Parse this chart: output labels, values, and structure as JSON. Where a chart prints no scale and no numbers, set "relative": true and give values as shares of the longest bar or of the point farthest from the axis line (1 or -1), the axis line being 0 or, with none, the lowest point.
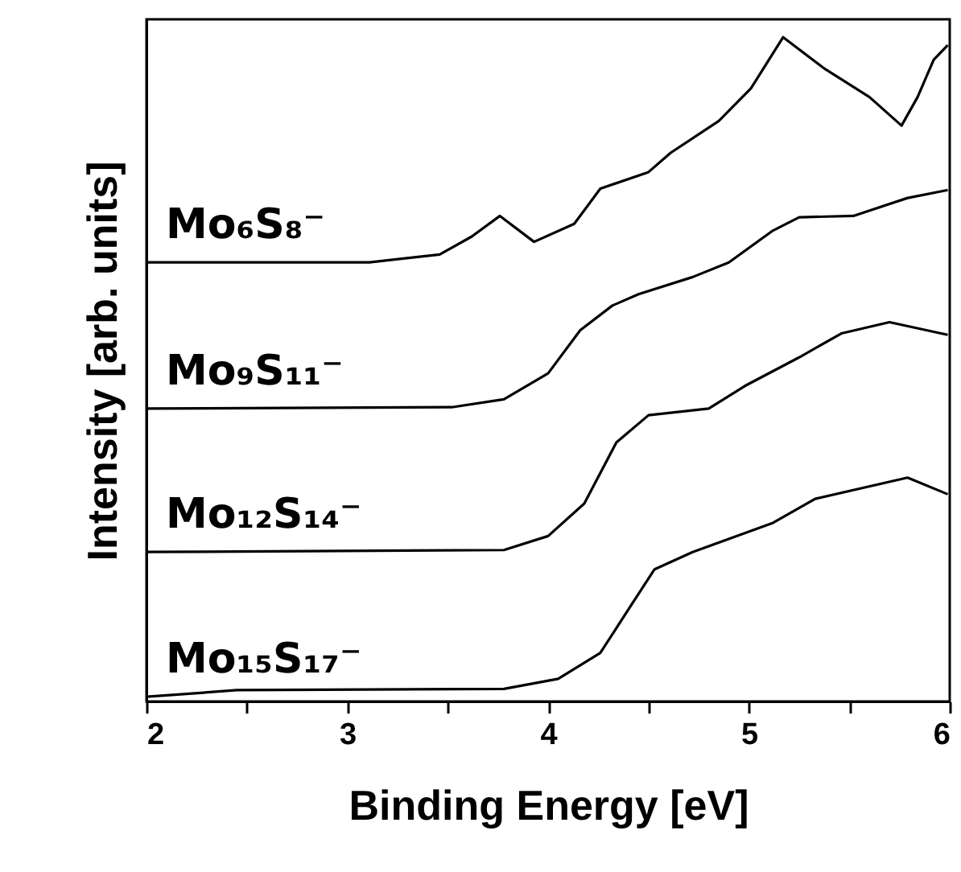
{
  "chart_data": {
    "type": "line",
    "relative": true,
    "xlabel": "Binding Energy [eV]",
    "ylabel": "Intensity [arb. units]",
    "xlim": [
      2,
      6
    ],
    "xticks": [
      2,
      {
        "value": 2.5,
        "label": null
      },
      3,
      {
        "value": 3.5,
        "label": null
      },
      4,
      {
        "value": 4.5,
        "label": null
      },
      5,
      {
        "value": 5.5,
        "label": null
      },
      6
    ],
    "grid": false,
    "marker": "none",
    "line_style": "solid",
    "series": [
      {
        "name": "Mo₆S₈⁻",
        "color": "#000000",
        "x": [
          2.0,
          3.11,
          3.46,
          3.62,
          3.76,
          3.93,
          4.13,
          4.26,
          4.5,
          4.61,
          4.85,
          5.01,
          5.17,
          5.38,
          5.6,
          5.76,
          5.84,
          5.92,
          5.99
        ],
        "values": [
          0.661,
          0.661,
          0.673,
          0.7,
          0.731,
          0.692,
          0.719,
          0.772,
          0.797,
          0.826,
          0.874,
          0.923,
          1.0,
          0.952,
          0.91,
          0.867,
          0.91,
          0.966,
          0.988
        ]
      },
      {
        "name": "Mo₉S₁₁⁻",
        "color": "#000000",
        "x": [
          2.0,
          3.52,
          3.78,
          4.0,
          4.16,
          4.32,
          4.45,
          4.72,
          4.9,
          5.12,
          5.25,
          5.52,
          5.79,
          5.99
        ],
        "values": [
          0.441,
          0.443,
          0.455,
          0.494,
          0.559,
          0.596,
          0.613,
          0.639,
          0.661,
          0.709,
          0.729,
          0.731,
          0.758,
          0.77
        ]
      },
      {
        "name": "Mo₁₂S₁₄⁻",
        "color": "#000000",
        "x": [
          2.0,
          3.78,
          4.0,
          4.18,
          4.34,
          4.5,
          4.8,
          4.98,
          5.25,
          5.46,
          5.7,
          5.99
        ],
        "values": [
          0.225,
          0.228,
          0.249,
          0.298,
          0.39,
          0.431,
          0.441,
          0.475,
          0.518,
          0.554,
          0.571,
          0.552
        ]
      },
      {
        "name": "Mo₁₅S₁₇⁻",
        "color": "#000000",
        "x": [
          2.0,
          2.45,
          3.78,
          4.05,
          4.26,
          4.42,
          4.53,
          4.72,
          5.12,
          5.33,
          5.79,
          5.99
        ],
        "values": [
          0.007,
          0.017,
          0.019,
          0.034,
          0.073,
          0.148,
          0.199,
          0.225,
          0.269,
          0.305,
          0.337,
          0.312
        ]
      }
    ]
  }
}
